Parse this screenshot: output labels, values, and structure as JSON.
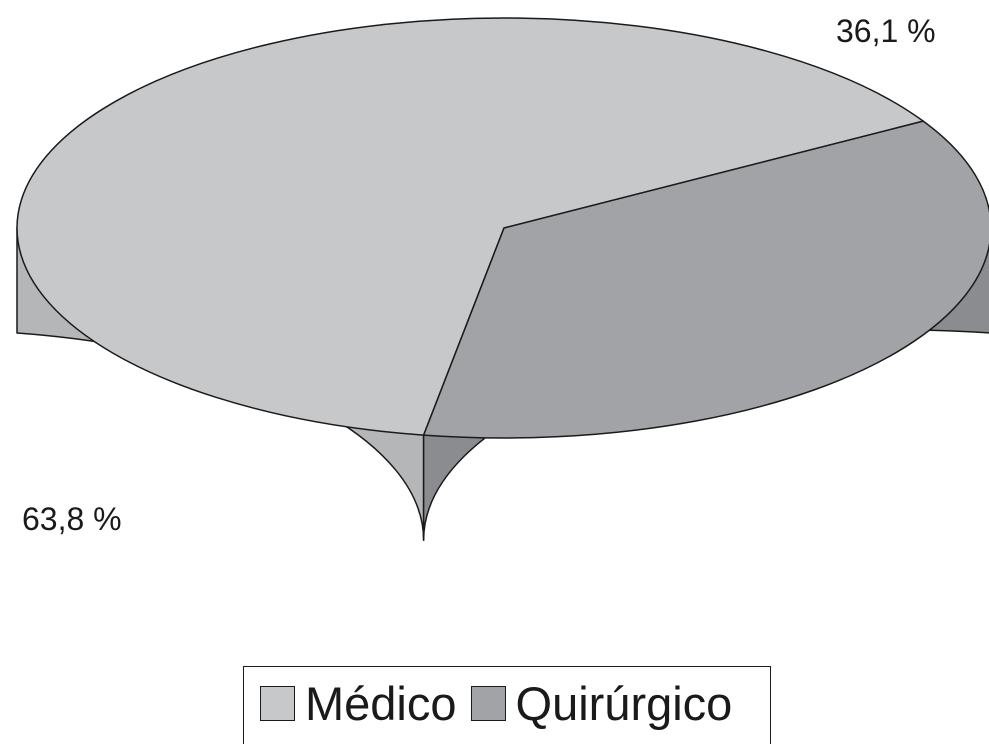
{
  "chart_data": {
    "type": "pie",
    "title": "",
    "slices": [
      {
        "label": "Médico",
        "value": 63.8,
        "value_label": "63,8 %",
        "color": "#c7c8ca",
        "side_color": "#b5b6b8"
      },
      {
        "label": "Quirúrgico",
        "value": 36.1,
        "value_label": "36,1 %",
        "color": "#a2a3a6",
        "side_color": "#8b8c8f"
      }
    ],
    "legend": {
      "position": "bottom",
      "entries": [
        "Médico",
        "Quirúrgico"
      ]
    },
    "style": "3d-tilted"
  }
}
